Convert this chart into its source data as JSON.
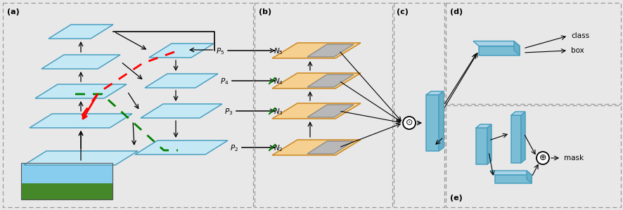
{
  "bg_color": "#e8e8e8",
  "blue_face": "#c5e8f5",
  "blue_edge": "#4a9fc0",
  "blue_face2": "#7bbdd4",
  "blue_face3": "#aad4e8",
  "orange_face": "#f5d090",
  "orange_edge": "#cc8822",
  "gray_face": "#b8b8b8",
  "gray_edge": "#888888",
  "panel_border": "#999999",
  "labels": {
    "a": "(a)",
    "b": "(b)",
    "c": "(c)",
    "d": "(d)",
    "e": "(e)"
  },
  "p_labels": [
    "2",
    "3",
    "4",
    "5"
  ],
  "n_labels": [
    "5",
    "4",
    "3",
    "2"
  ],
  "panel_a": [
    4,
    4,
    356,
    291
  ],
  "panel_b": [
    362,
    4,
    196,
    291
  ],
  "panel_c": [
    560,
    4,
    72,
    291
  ],
  "panel_d": [
    634,
    4,
    249,
    144
  ],
  "panel_e": [
    634,
    150,
    249,
    145
  ]
}
